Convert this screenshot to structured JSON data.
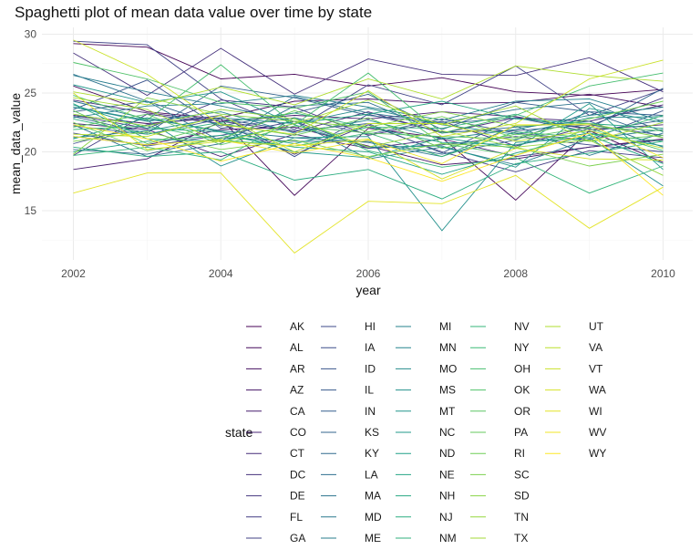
{
  "chart_data": {
    "type": "line",
    "title": "Spaghetti plot of mean data value over time by state",
    "xlabel": "year",
    "ylabel": "mean_data_value",
    "xlim": [
      2002,
      2010
    ],
    "ylim": [
      11,
      30
    ],
    "x_ticks": [
      2002,
      2004,
      2006,
      2008,
      2010
    ],
    "y_ticks": [
      15,
      20,
      25,
      30
    ],
    "grid": true,
    "legend": {
      "title": "state",
      "placement": "bottom",
      "columns": 5
    },
    "x": [
      2002,
      2003,
      2004,
      2005,
      2006,
      2007,
      2008,
      2009,
      2010
    ],
    "series": [
      {
        "name": "AK",
        "values": [
          29.2,
          28.9,
          26.2,
          26.6,
          25.6,
          26.3,
          25.1,
          24.8,
          25.3
        ]
      },
      {
        "name": "AL",
        "values": [
          25.6,
          23.4,
          22.8,
          16.3,
          22.0,
          21.2,
          15.9,
          21.8,
          19.1
        ]
      },
      {
        "name": "AR",
        "values": [
          23.1,
          22.4,
          22.9,
          24.3,
          24.5,
          24.1,
          24.2,
          24.9,
          23.8
        ]
      },
      {
        "name": "AZ",
        "values": [
          21.3,
          20.6,
          21.9,
          22.1,
          20.5,
          18.9,
          19.4,
          20.4,
          21.1
        ]
      },
      {
        "name": "CA",
        "values": [
          18.5,
          19.4,
          22.6,
          23.1,
          22.8,
          23.4,
          23.0,
          21.9,
          22.3
        ]
      },
      {
        "name": "CO",
        "values": [
          22.4,
          21.9,
          19.6,
          21.5,
          20.3,
          21.1,
          19.6,
          20.4,
          21.0
        ]
      },
      {
        "name": "CT",
        "values": [
          24.4,
          23.3,
          22.6,
          21.7,
          23.4,
          21.6,
          22.9,
          22.6,
          24.0
        ]
      },
      {
        "name": "DC",
        "values": [
          28.4,
          24.8,
          28.8,
          24.9,
          27.9,
          26.6,
          26.5,
          28.0,
          25.1
        ]
      },
      {
        "name": "DE",
        "values": [
          23.1,
          22.0,
          24.4,
          23.8,
          21.4,
          22.6,
          20.5,
          22.2,
          24.6
        ]
      },
      {
        "name": "FL",
        "values": [
          19.7,
          23.2,
          22.4,
          19.8,
          22.3,
          20.0,
          18.3,
          20.1,
          19.5
        ]
      },
      {
        "name": "GA",
        "values": [
          29.4,
          29.1,
          24.5,
          21.9,
          25.7,
          24.0,
          27.3,
          23.1,
          25.3
        ]
      },
      {
        "name": "HI",
        "values": [
          21.6,
          20.5,
          21.4,
          22.6,
          20.3,
          20.6,
          21.3,
          20.6,
          20.0
        ]
      },
      {
        "name": "IA",
        "values": [
          20.7,
          22.3,
          23.1,
          19.6,
          23.2,
          21.7,
          21.8,
          22.3,
          21.4
        ]
      },
      {
        "name": "ID",
        "values": [
          23.6,
          26.1,
          22.0,
          22.9,
          21.5,
          22.8,
          21.6,
          21.0,
          23.5
        ]
      },
      {
        "name": "IL",
        "values": [
          22.2,
          21.5,
          22.8,
          21.8,
          22.4,
          19.9,
          22.9,
          21.7,
          22.7
        ]
      },
      {
        "name": "IN",
        "values": [
          23.4,
          24.3,
          22.2,
          23.3,
          24.9,
          21.9,
          24.2,
          23.4,
          23.1
        ]
      },
      {
        "name": "KS",
        "values": [
          23.0,
          21.6,
          25.6,
          24.6,
          23.1,
          22.4,
          22.9,
          22.0,
          25.4
        ]
      },
      {
        "name": "KY",
        "values": [
          20.2,
          19.8,
          21.2,
          20.9,
          20.9,
          19.8,
          21.0,
          23.4,
          21.2
        ]
      },
      {
        "name": "LA",
        "values": [
          22.3,
          19.6,
          20.7,
          23.9,
          24.2,
          21.6,
          22.1,
          22.6,
          20.4
        ]
      },
      {
        "name": "MA",
        "values": [
          26.6,
          24.3,
          20.9,
          24.7,
          23.3,
          22.5,
          23.6,
          24.2,
          21.7
        ]
      },
      {
        "name": "MD",
        "values": [
          24.3,
          22.8,
          21.8,
          21.2,
          20.8,
          19.6,
          22.2,
          19.7,
          21.6
        ]
      },
      {
        "name": "ME",
        "values": [
          26.5,
          25.1,
          23.9,
          22.6,
          19.4,
          20.4,
          18.9,
          21.1,
          21.9
        ]
      },
      {
        "name": "MI",
        "values": [
          22.9,
          23.9,
          24.1,
          24.8,
          23.8,
          22.7,
          24.3,
          24.5,
          22.6
        ]
      },
      {
        "name": "MN",
        "values": [
          23.8,
          22.6,
          23.4,
          21.6,
          22.7,
          21.1,
          21.9,
          23.1,
          23.8
        ]
      },
      {
        "name": "MO",
        "values": [
          21.2,
          21.8,
          22.9,
          22.4,
          23.7,
          22.3,
          21.5,
          22.9,
          23.0
        ]
      },
      {
        "name": "MS",
        "values": [
          23.8,
          22.7,
          18.8,
          21.2,
          21.3,
          13.3,
          20.8,
          21.2,
          17.1
        ]
      },
      {
        "name": "MT",
        "values": [
          25.7,
          24.2,
          25.1,
          22.3,
          20.4,
          20.5,
          18.7,
          23.7,
          22.5
        ]
      },
      {
        "name": "NC",
        "values": [
          24.0,
          22.0,
          21.7,
          20.0,
          19.5,
          21.2,
          20.3,
          24.1,
          18.5
        ]
      },
      {
        "name": "ND",
        "values": [
          21.1,
          22.9,
          21.7,
          20.7,
          22.1,
          20.8,
          20.6,
          21.6,
          20.5
        ]
      },
      {
        "name": "NE",
        "values": [
          20.0,
          20.9,
          21.4,
          20.4,
          20.0,
          18.1,
          19.9,
          21.4,
          19.0
        ]
      },
      {
        "name": "NH",
        "values": [
          24.1,
          21.1,
          20.9,
          22.4,
          23.2,
          24.3,
          22.8,
          22.4,
          22.0
        ]
      },
      {
        "name": "NJ",
        "values": [
          20.4,
          19.6,
          20.0,
          17.6,
          18.5,
          16.0,
          19.0,
          19.9,
          20.9
        ]
      },
      {
        "name": "NM",
        "values": [
          22.8,
          21.5,
          22.5,
          23.3,
          22.1,
          22.0,
          23.2,
          21.5,
          20.9
        ]
      },
      {
        "name": "NV",
        "values": [
          19.7,
          20.4,
          19.3,
          22.9,
          20.1,
          18.7,
          19.5,
          16.5,
          18.8
        ]
      },
      {
        "name": "NY",
        "values": [
          21.9,
          22.2,
          21.0,
          20.5,
          21.6,
          19.6,
          21.7,
          21.2,
          23.1
        ]
      },
      {
        "name": "OH",
        "values": [
          24.8,
          22.7,
          27.4,
          22.3,
          26.7,
          21.6,
          23.1,
          25.6,
          26.7
        ]
      },
      {
        "name": "OK",
        "values": [
          27.6,
          26.2,
          24.2,
          23.7,
          25.1,
          20.7,
          19.7,
          22.0,
          20.1
        ]
      },
      {
        "name": "OR",
        "values": [
          22.1,
          23.2,
          20.6,
          22.2,
          21.6,
          21.3,
          21.1,
          22.1,
          21.8
        ]
      },
      {
        "name": "PA",
        "values": [
          23.5,
          20.7,
          22.4,
          21.4,
          22.9,
          20.3,
          21.5,
          20.9,
          21.4
        ]
      },
      {
        "name": "RI",
        "values": [
          22.5,
          20.1,
          21.1,
          23.5,
          21.7,
          23.0,
          21.2,
          22.8,
          24.3
        ]
      },
      {
        "name": "SC",
        "values": [
          20.9,
          21.7,
          20.2,
          21.0,
          19.6,
          20.7,
          20.4,
          18.8,
          19.8
        ]
      },
      {
        "name": "SD",
        "values": [
          19.8,
          24.6,
          23.2,
          22.6,
          22.1,
          23.4,
          22.2,
          22.4,
          21.2
        ]
      },
      {
        "name": "TN",
        "values": [
          23.2,
          22.2,
          23.6,
          22.8,
          20.4,
          21.8,
          20.4,
          21.0,
          18.0
        ]
      },
      {
        "name": "TX",
        "values": [
          24.6,
          23.6,
          20.8,
          22.4,
          24.4,
          22.3,
          23.9,
          20.9,
          22.5
        ]
      },
      {
        "name": "UT",
        "values": [
          25.1,
          24.0,
          25.5,
          24.0,
          26.2,
          24.5,
          27.3,
          26.5,
          26.0
        ]
      },
      {
        "name": "VA",
        "values": [
          21.5,
          21.3,
          23.1,
          20.0,
          22.4,
          22.4,
          20.9,
          21.8,
          20.3
        ]
      },
      {
        "name": "VT",
        "values": [
          29.5,
          26.6,
          22.3,
          21.5,
          25.2,
          21.3,
          22.4,
          26.2,
          27.8
        ]
      },
      {
        "name": "WA",
        "values": [
          25.0,
          20.2,
          20.9,
          20.5,
          21.1,
          17.7,
          20.3,
          19.4,
          19.3
        ]
      },
      {
        "name": "WI",
        "values": [
          16.5,
          18.2,
          18.2,
          11.4,
          15.8,
          15.6,
          18.0,
          13.5,
          17.0
        ]
      },
      {
        "name": "WV",
        "values": [
          21.3,
          20.6,
          21.0,
          19.9,
          21.0,
          19.0,
          22.3,
          22.3,
          19.5
        ]
      },
      {
        "name": "WY",
        "values": [
          22.3,
          21.1,
          19.2,
          20.7,
          19.5,
          17.5,
          19.7,
          21.6,
          16.3
        ]
      }
    ]
  }
}
